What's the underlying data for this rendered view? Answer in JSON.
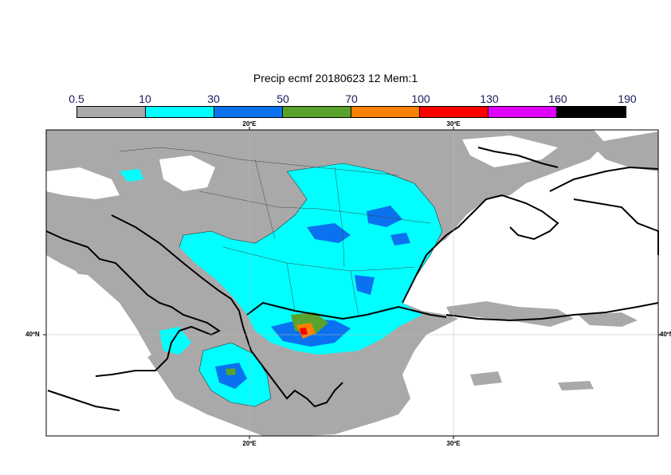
{
  "title": "Precip ecmf 20180623 12 Mem:1",
  "legend": {
    "labels": [
      "0.5",
      "10",
      "30",
      "50",
      "70",
      "100",
      "130",
      "160",
      "190"
    ],
    "colors": [
      "#a9a9a9",
      "#00ffff",
      "#0a72ef",
      "#59a22c",
      "#ff7f00",
      "#ff0000",
      "#e000ff",
      "#000000"
    ]
  },
  "axes": {
    "top_ticks": [
      "20ºE",
      "30ºE"
    ],
    "bottom_ticks": [
      "20ºE",
      "30ºE"
    ],
    "left_ticks": [
      "40ºN"
    ],
    "right_ticks": [
      "40ºN"
    ]
  },
  "map_colors": {
    "land": "#ffffff",
    "grid": "#bdbdbd"
  }
}
